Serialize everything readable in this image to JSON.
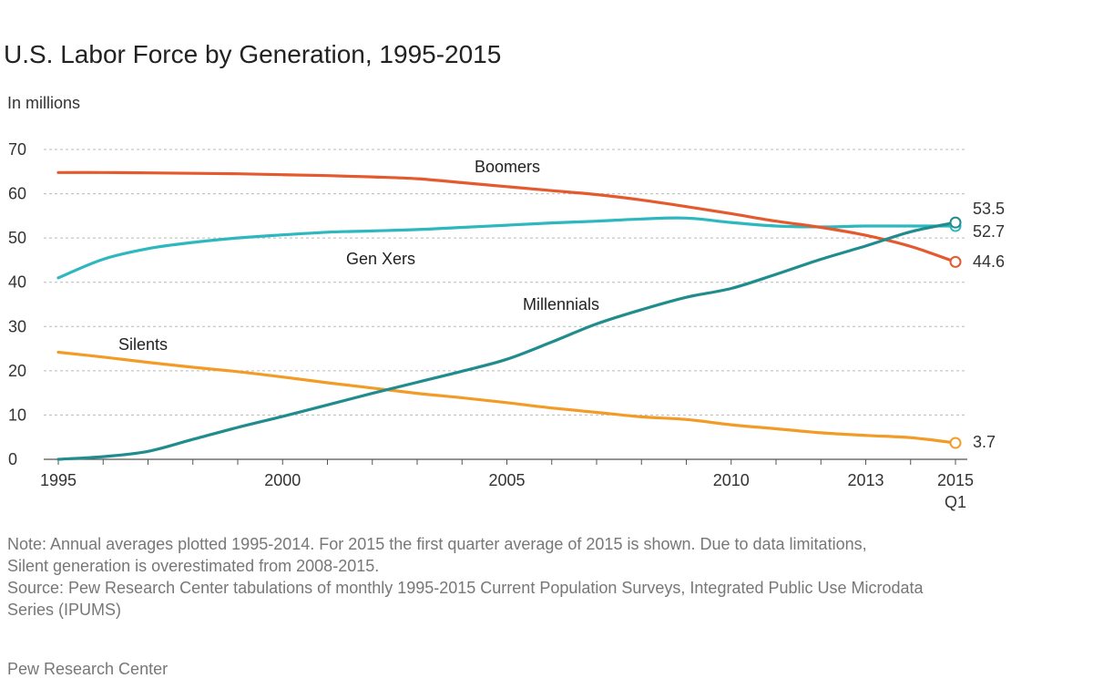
{
  "chart_data": {
    "type": "line",
    "title": "U.S. Labor Force by Generation, 1995-2015",
    "ylabel": "In millions",
    "xlabel": "",
    "ylim": [
      0,
      70
    ],
    "yticks": [
      0,
      10,
      20,
      30,
      40,
      50,
      60,
      70
    ],
    "x": [
      1995,
      1996,
      1997,
      1998,
      1999,
      2000,
      2001,
      2002,
      2003,
      2004,
      2005,
      2006,
      2007,
      2008,
      2009,
      2010,
      2011,
      2012,
      2013,
      2014,
      2015
    ],
    "xticks": [
      {
        "value": 1995,
        "label": "1995",
        "sub": ""
      },
      {
        "value": 2000,
        "label": "2000",
        "sub": ""
      },
      {
        "value": 2005,
        "label": "2005",
        "sub": ""
      },
      {
        "value": 2010,
        "label": "2010",
        "sub": ""
      },
      {
        "value": 2013,
        "label": "2013",
        "sub": ""
      },
      {
        "value": 2015,
        "label": "2015",
        "sub": "Q1"
      }
    ],
    "grid": true,
    "series": [
      {
        "name": "Boomers",
        "color": "#e5592e",
        "values": [
          64.8,
          64.8,
          64.7,
          64.6,
          64.5,
          64.3,
          64.1,
          63.8,
          63.4,
          62.5,
          61.6,
          60.7,
          59.8,
          58.6,
          57.1,
          55.5,
          53.8,
          52.4,
          50.6,
          48.1,
          44.6
        ],
        "end_label": "44.6"
      },
      {
        "name": "Gen Xers",
        "color": "#2db7bf",
        "values": [
          41.0,
          45.2,
          47.6,
          49.0,
          50.0,
          50.7,
          51.3,
          51.6,
          51.9,
          52.4,
          52.9,
          53.4,
          53.8,
          54.3,
          54.5,
          53.5,
          52.7,
          52.5,
          52.7,
          52.7,
          52.7
        ],
        "end_label": "52.7"
      },
      {
        "name": "Millennials",
        "color": "#208c8d",
        "values": [
          0.0,
          0.6,
          1.8,
          4.5,
          7.2,
          9.7,
          12.3,
          14.9,
          17.4,
          19.9,
          22.6,
          26.5,
          30.6,
          33.8,
          36.6,
          38.6,
          41.8,
          45.2,
          48.2,
          51.4,
          53.5
        ],
        "end_label": "53.5"
      },
      {
        "name": "Silents",
        "color": "#f29c27",
        "values": [
          24.2,
          23.1,
          21.9,
          20.8,
          19.8,
          18.6,
          17.3,
          16.1,
          14.9,
          13.9,
          12.8,
          11.6,
          10.6,
          9.6,
          9.0,
          7.8,
          6.9,
          6.0,
          5.4,
          4.9,
          3.7
        ],
        "end_label": "3.7"
      }
    ]
  },
  "note_lines": [
    "Note: Annual averages plotted 1995-2014. For 2015 the first quarter average of 2015 is shown. Due to data limitations,",
    "Silent generation is overestimated from 2008-2015.",
    "Source: Pew Research Center tabulations of monthly 1995-2015 Current Population Surveys, Integrated Public Use Microdata",
    "Series (IPUMS)"
  ],
  "credit": "Pew Research Center"
}
